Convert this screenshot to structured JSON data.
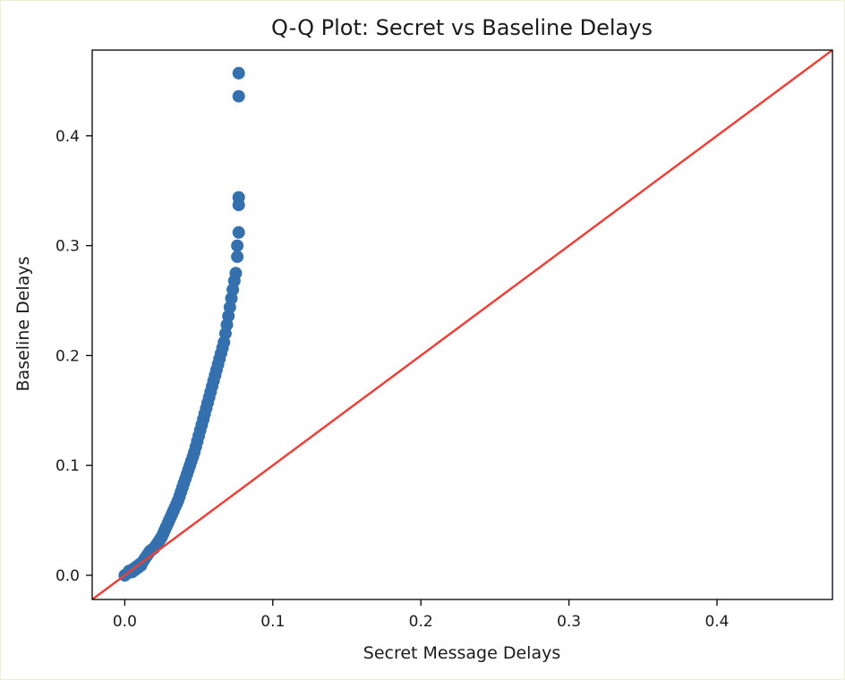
{
  "chart_data": {
    "type": "scatter",
    "title": "Q-Q Plot: Secret vs Baseline Delays",
    "xlabel": "Secret Message Delays",
    "ylabel": "Baseline Delays",
    "xlim": [
      -0.022,
      0.478
    ],
    "ylim": [
      -0.022,
      0.478
    ],
    "x_ticks": [
      {
        "value": 0.0,
        "label": "0.0"
      },
      {
        "value": 0.1,
        "label": "0.1"
      },
      {
        "value": 0.2,
        "label": "0.2"
      },
      {
        "value": 0.3,
        "label": "0.3"
      },
      {
        "value": 0.4,
        "label": "0.4"
      }
    ],
    "y_ticks": [
      {
        "value": 0.0,
        "label": "0.0"
      },
      {
        "value": 0.1,
        "label": "0.1"
      },
      {
        "value": 0.2,
        "label": "0.2"
      },
      {
        "value": 0.3,
        "label": "0.3"
      },
      {
        "value": 0.4,
        "label": "0.4"
      }
    ],
    "grid": false,
    "legend": "none",
    "reference_line": {
      "from": [
        -0.022,
        -0.022
      ],
      "to": [
        0.478,
        0.478
      ],
      "color": "#e8423a"
    },
    "points": [
      [
        0.0,
        0.0
      ],
      [
        0.002,
        0.002
      ],
      [
        0.003,
        0.004
      ],
      [
        0.005,
        0.003
      ],
      [
        0.006,
        0.006
      ],
      [
        0.007,
        0.005
      ],
      [
        0.008,
        0.008
      ],
      [
        0.009,
        0.007
      ],
      [
        0.01,
        0.01
      ],
      [
        0.011,
        0.009
      ],
      [
        0.012,
        0.012
      ],
      [
        0.013,
        0.014
      ],
      [
        0.014,
        0.016
      ],
      [
        0.015,
        0.018
      ],
      [
        0.016,
        0.02
      ],
      [
        0.017,
        0.022
      ],
      [
        0.018,
        0.023
      ],
      [
        0.019,
        0.024
      ],
      [
        0.02,
        0.025
      ],
      [
        0.021,
        0.027
      ],
      [
        0.022,
        0.029
      ],
      [
        0.023,
        0.031
      ],
      [
        0.024,
        0.033
      ],
      [
        0.025,
        0.035
      ],
      [
        0.026,
        0.038
      ],
      [
        0.027,
        0.041
      ],
      [
        0.028,
        0.044
      ],
      [
        0.029,
        0.047
      ],
      [
        0.03,
        0.05
      ],
      [
        0.031,
        0.053
      ],
      [
        0.032,
        0.056
      ],
      [
        0.033,
        0.059
      ],
      [
        0.034,
        0.062
      ],
      [
        0.035,
        0.065
      ],
      [
        0.036,
        0.068
      ],
      [
        0.037,
        0.072
      ],
      [
        0.038,
        0.076
      ],
      [
        0.039,
        0.08
      ],
      [
        0.04,
        0.084
      ],
      [
        0.041,
        0.088
      ],
      [
        0.042,
        0.092
      ],
      [
        0.043,
        0.096
      ],
      [
        0.044,
        0.1
      ],
      [
        0.045,
        0.104
      ],
      [
        0.046,
        0.108
      ],
      [
        0.047,
        0.112
      ],
      [
        0.048,
        0.117
      ],
      [
        0.049,
        0.122
      ],
      [
        0.05,
        0.127
      ],
      [
        0.051,
        0.132
      ],
      [
        0.052,
        0.137
      ],
      [
        0.053,
        0.142
      ],
      [
        0.054,
        0.147
      ],
      [
        0.055,
        0.152
      ],
      [
        0.056,
        0.157
      ],
      [
        0.057,
        0.162
      ],
      [
        0.058,
        0.167
      ],
      [
        0.059,
        0.172
      ],
      [
        0.06,
        0.177
      ],
      [
        0.061,
        0.182
      ],
      [
        0.062,
        0.187
      ],
      [
        0.063,
        0.192
      ],
      [
        0.064,
        0.197
      ],
      [
        0.065,
        0.202
      ],
      [
        0.066,
        0.207
      ],
      [
        0.067,
        0.212
      ],
      [
        0.068,
        0.22
      ],
      [
        0.069,
        0.228
      ],
      [
        0.07,
        0.236
      ],
      [
        0.071,
        0.244
      ],
      [
        0.072,
        0.252
      ],
      [
        0.073,
        0.26
      ],
      [
        0.074,
        0.268
      ],
      [
        0.075,
        0.275
      ],
      [
        0.076,
        0.29
      ],
      [
        0.076,
        0.3
      ],
      [
        0.077,
        0.312
      ],
      [
        0.077,
        0.337
      ],
      [
        0.077,
        0.344
      ],
      [
        0.077,
        0.436
      ],
      [
        0.077,
        0.457
      ]
    ]
  }
}
